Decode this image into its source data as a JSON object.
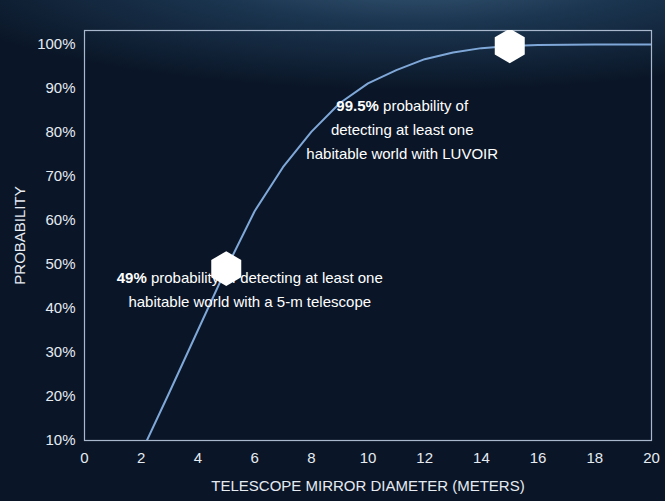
{
  "chart_data": {
    "type": "line",
    "x_label": "TELESCOPE MIRROR DIAMETER (METERS)",
    "y_label": "PROBABILITY",
    "x": [
      2.2,
      3,
      4,
      5,
      6,
      7,
      8,
      9,
      10,
      11,
      12,
      13,
      14,
      15,
      16,
      18,
      20
    ],
    "values": [
      10,
      21,
      35,
      49,
      62,
      72,
      80,
      86.5,
      91,
      94,
      96.5,
      98,
      99,
      99.5,
      99.7,
      99.8,
      99.8
    ],
    "color": "#7fa8d9",
    "xlim": [
      0,
      20
    ],
    "xticks": [
      0,
      2,
      4,
      6,
      8,
      10,
      12,
      14,
      16,
      18,
      20
    ],
    "ylim": [
      10,
      103
    ],
    "yticks": [
      {
        "value": 10,
        "label": "10%"
      },
      {
        "value": 20,
        "label": "20%"
      },
      {
        "value": 30,
        "label": "30%"
      },
      {
        "value": 40,
        "label": "40%"
      },
      {
        "value": 50,
        "label": "50%"
      },
      {
        "value": 60,
        "label": "60%"
      },
      {
        "value": 70,
        "label": "70%"
      },
      {
        "value": 80,
        "label": "80%"
      },
      {
        "value": 90,
        "label": "90%"
      },
      {
        "value": 100,
        "label": "100%"
      }
    ],
    "grid": false,
    "annotations": [
      {
        "x": 15,
        "y": 99.5,
        "label": "99.5%",
        "text": "probability of detecting at least one habitable world with LUVOIR"
      },
      {
        "x": 5,
        "y": 49,
        "label": "49%",
        "text": "probability of detecting at least one habitable world with a 5-m telescope"
      }
    ]
  }
}
